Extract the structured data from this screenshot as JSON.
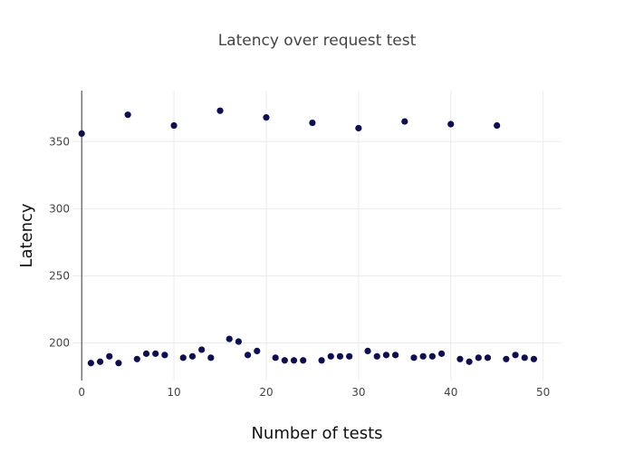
{
  "chart_data": {
    "type": "scatter",
    "title": "Latency over request test",
    "xlabel": "Number of tests",
    "ylabel": "Latency",
    "xlim": [
      -1,
      52
    ],
    "ylim": [
      172,
      388
    ],
    "x_ticks": [
      0,
      10,
      20,
      30,
      40,
      50
    ],
    "y_ticks": [
      200,
      250,
      300,
      350
    ],
    "grid": true,
    "point_color": "#0f0f4f",
    "series": [
      {
        "x": [
          0,
          1,
          2,
          3,
          4,
          5,
          6,
          7,
          8,
          9,
          10,
          11,
          12,
          13,
          14,
          15,
          16,
          17,
          18,
          19,
          20,
          21,
          22,
          23,
          24,
          25,
          26,
          27,
          28,
          29,
          30,
          31,
          32,
          33,
          34,
          35,
          36,
          37,
          38,
          39,
          40,
          41,
          42,
          43,
          44,
          45,
          46,
          47,
          48,
          49
        ],
        "y": [
          356,
          185,
          186,
          190,
          185,
          370,
          188,
          192,
          192,
          191,
          362,
          189,
          190,
          195,
          189,
          373,
          203,
          201,
          191,
          194,
          368,
          189,
          187,
          187,
          187,
          364,
          187,
          190,
          190,
          190,
          360,
          194,
          190,
          191,
          191,
          365,
          189,
          190,
          190,
          192,
          363,
          188,
          186,
          189,
          189,
          362,
          188,
          191,
          189,
          188
        ]
      }
    ]
  }
}
